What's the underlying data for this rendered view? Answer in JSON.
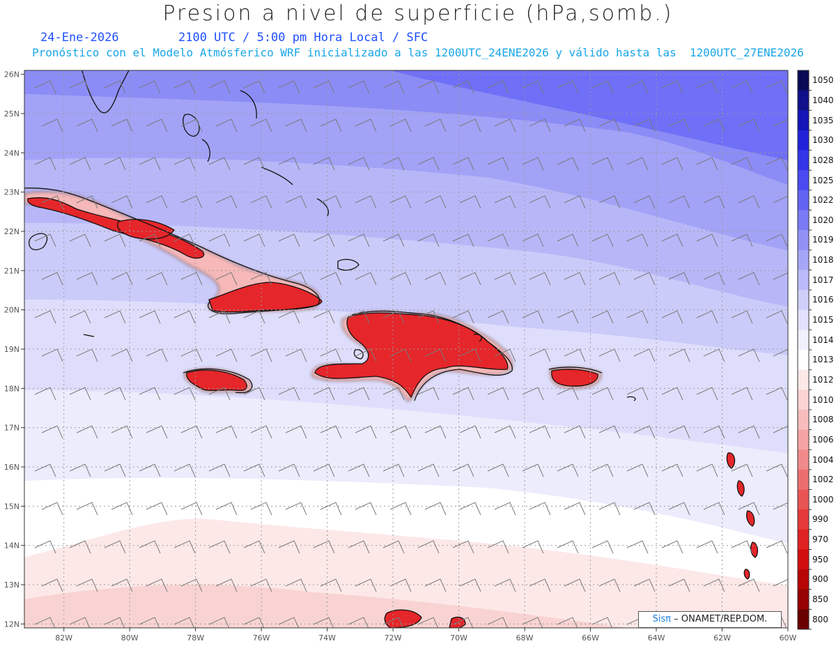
{
  "header": {
    "title": "Presion a nivel de superficie (hPa,somb.)",
    "date": "24-Ene-2026",
    "time_info": "2100 UTC / 5:00 pm Hora Local / SFC",
    "model_info": "Pronóstico con el Modelo Atmósferico WRF inicializado a las 1200UTC_24ENE2026 y válido hasta las  1200UTC_27ENE2026"
  },
  "map": {
    "lat_labels": [
      "26N",
      "25N",
      "24N",
      "23N",
      "22N",
      "21N",
      "20N",
      "19N",
      "18N",
      "17N",
      "16N",
      "15N",
      "14N",
      "13N",
      "12N"
    ],
    "lon_labels": [
      "82W",
      "80W",
      "78W",
      "76W",
      "74W",
      "72W",
      "70W",
      "68W",
      "66W",
      "64W",
      "62W",
      "60W"
    ],
    "lat_range": [
      12,
      26
    ],
    "lon_range": [
      -83.2,
      -60
    ],
    "background_band_colors": [
      "#6f6ff7",
      "#8c8cf6",
      "#a2a2f7",
      "#b7b7f8",
      "#cbcbfa",
      "#dedefc",
      "#ececfd",
      "#ffffff",
      "#fde8e8",
      "#f9d3d3"
    ],
    "land_high_color": "#e5262a",
    "wind_barbs": "grey"
  },
  "colorbar": {
    "levels": [
      "1050",
      "1040",
      "1035",
      "1030",
      "1028",
      "1025",
      "1022",
      "1020",
      "1019",
      "1018",
      "1017",
      "1016",
      "1015",
      "1014",
      "1013",
      "1012",
      "1010",
      "1008",
      "1006",
      "1004",
      "1002",
      "1000",
      "990",
      "970",
      "950",
      "900",
      "850",
      "800"
    ],
    "colors": [
      "#0b0b55",
      "#10108a",
      "#1515b8",
      "#2222d8",
      "#3434e8",
      "#4a4af0",
      "#6262f3",
      "#7a7af5",
      "#9191f6",
      "#a6a6f7",
      "#bbbbf9",
      "#cfcffa",
      "#e2e2fc",
      "#f1f1fe",
      "#ffffff",
      "#fde8e8",
      "#fbd3d3",
      "#f8bcbc",
      "#f5a3a3",
      "#f18a8a",
      "#ec6f6f",
      "#e85454",
      "#e43a3a",
      "#e02222",
      "#d20e0e",
      "#b60606",
      "#950303",
      "#6a0000"
    ]
  },
  "credit": {
    "brand": "Sisπ",
    "text": "– ONAMET/REP.DOM."
  }
}
